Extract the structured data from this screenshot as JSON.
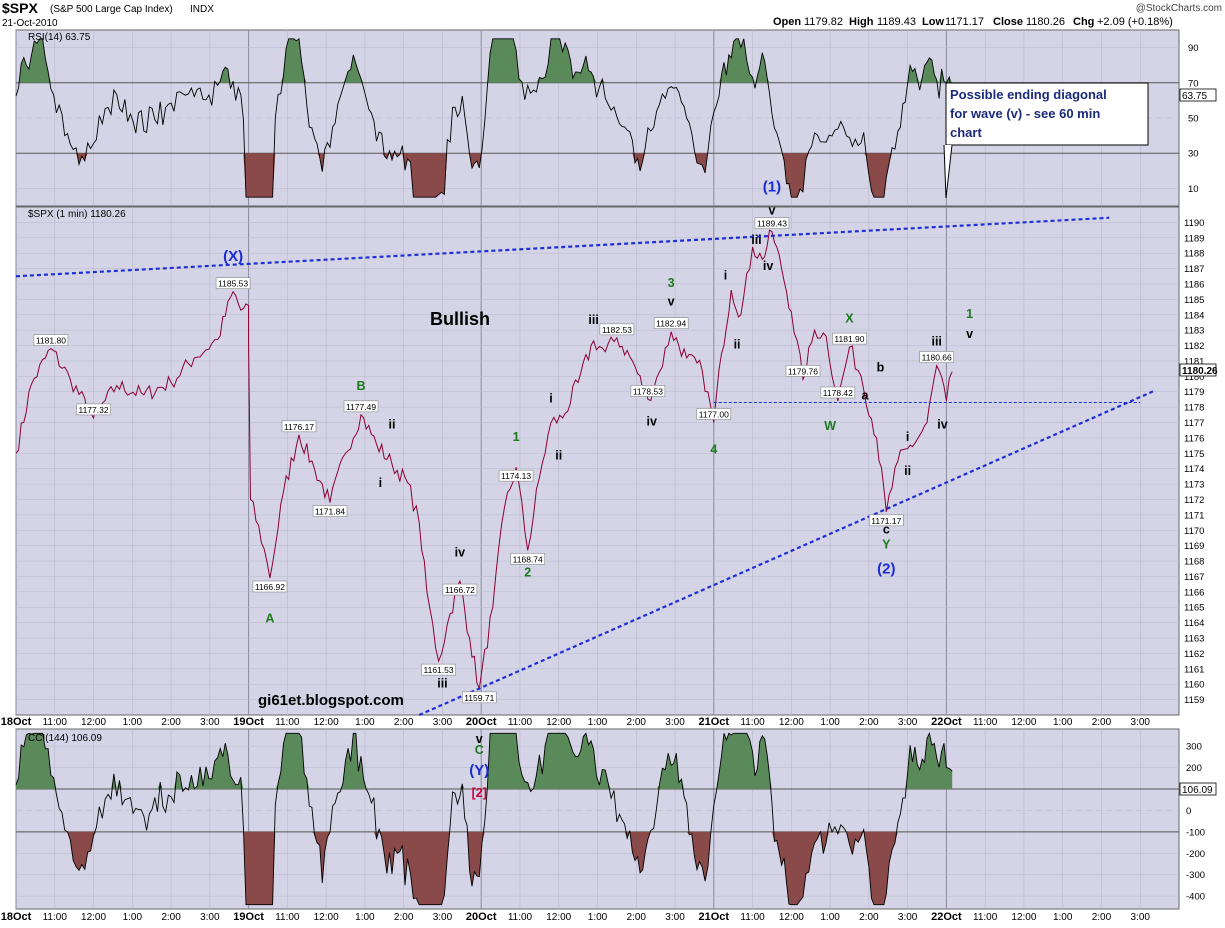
{
  "header": {
    "symbol": "$SPX",
    "name": "(S&P 500 Large Cap Index)",
    "exchange": "INDX",
    "date": "21-Oct-2010",
    "watermark": "@StockCharts.com",
    "quote": {
      "open_label": "Open",
      "open": "1179.82",
      "high_label": "High",
      "high": "1189.43",
      "low_label": "Low",
      "low": "1171.17",
      "close_label": "Close",
      "close": "1180.26",
      "chg_label": "Chg",
      "chg": "+2.09 (+0.18%)"
    }
  },
  "colors": {
    "panel_bg": "#d4d4e6",
    "grid": "#b9b9cc",
    "price_line": "#8b0033",
    "indicator_line": "#000000",
    "overbought_fill": "#5a8a5a",
    "oversold_fill": "#8a4a4a",
    "trend_line": "#1f2fd8",
    "wave_black": "#000000",
    "wave_green": "#1c7a1c",
    "wave_blue": "#1a2ad4",
    "wave_red": "#cc0033"
  },
  "rsi": {
    "label": "RSI(14) 63.75",
    "current": "63.75",
    "ticks": [
      "90",
      "70",
      "50",
      "30",
      "10"
    ]
  },
  "cci": {
    "label": "CCI(144) 106.09",
    "current": "106.09",
    "ticks": [
      "300",
      "200",
      "100",
      "0",
      "-100",
      "-200",
      "-300",
      "-400"
    ]
  },
  "price": {
    "label": "$SPX (1 min) 1180.26",
    "current": "1180.26",
    "watermark_text": "gi61et.blogspot.com",
    "annotation_bullish": "Bullish",
    "callout": {
      "line1": "Possible ending diagonal",
      "line2": "for wave (v) - see 60 min",
      "line3": "chart"
    }
  },
  "x_axis": {
    "labels": [
      "18Oct",
      "11:00",
      "12:00",
      "1:00",
      "2:00",
      "3:00",
      "19Oct",
      "11:00",
      "12:00",
      "1:00",
      "2:00",
      "3:00",
      "20Oct",
      "11:00",
      "12:00",
      "1:00",
      "2:00",
      "3:00",
      "21Oct",
      "11:00",
      "12:00",
      "1:00",
      "2:00",
      "3:00",
      "22Oct",
      "11:00",
      "12:00",
      "1:00",
      "2:00",
      "3:00"
    ]
  },
  "chart_data": {
    "type": "line",
    "title": "$SPX (S&P 500 Large Cap Index) INDX",
    "y_range": [
      1158,
      1191
    ],
    "y_ticks": [
      1159,
      1160,
      1161,
      1162,
      1163,
      1164,
      1165,
      1166,
      1167,
      1168,
      1169,
      1170,
      1171,
      1172,
      1173,
      1174,
      1175,
      1176,
      1177,
      1178,
      1179,
      1180,
      1181,
      1182,
      1183,
      1184,
      1185,
      1186,
      1187,
      1188,
      1189,
      1190
    ],
    "x_sessions": [
      "18Oct",
      "19Oct",
      "20Oct",
      "21Oct"
    ],
    "series": [
      {
        "points": [
          [
            0,
            1175.0
          ],
          [
            0.4,
            1179.5
          ],
          [
            0.9,
            1181.8
          ],
          [
            1.4,
            1179.8
          ],
          [
            2.0,
            1177.3
          ],
          [
            2.6,
            1179.4
          ],
          [
            3.3,
            1178.8
          ],
          [
            4.0,
            1179.6
          ],
          [
            4.6,
            1181.2
          ],
          [
            5.2,
            1182.4
          ],
          [
            5.6,
            1185.5
          ],
          [
            5.8,
            1184.3
          ],
          [
            6.0,
            1184.6
          ],
          [
            6.0,
            1182.0
          ],
          [
            6.05,
            1172.0
          ],
          [
            6.4,
            1168.8
          ],
          [
            6.55,
            1166.9
          ],
          [
            6.9,
            1172.5
          ],
          [
            7.3,
            1176.2
          ],
          [
            7.7,
            1174.0
          ],
          [
            8.1,
            1171.8
          ],
          [
            8.5,
            1175.0
          ],
          [
            8.9,
            1177.5
          ],
          [
            9.3,
            1175.6
          ],
          [
            9.7,
            1174.3
          ],
          [
            10.1,
            1173.1
          ],
          [
            10.4,
            1170.5
          ],
          [
            10.6,
            1166.0
          ],
          [
            10.9,
            1161.5
          ],
          [
            11.2,
            1164.6
          ],
          [
            11.45,
            1166.7
          ],
          [
            11.7,
            1163.0
          ],
          [
            11.95,
            1159.7
          ],
          [
            12.3,
            1165.0
          ],
          [
            12.6,
            1171.5
          ],
          [
            12.9,
            1174.1
          ],
          [
            13.2,
            1168.7
          ],
          [
            13.5,
            1173.4
          ],
          [
            13.8,
            1177.0
          ],
          [
            14.1,
            1177.3
          ],
          [
            14.5,
            1179.6
          ],
          [
            14.9,
            1182.3
          ],
          [
            15.2,
            1181.6
          ],
          [
            15.5,
            1182.5
          ],
          [
            15.9,
            1181.0
          ],
          [
            16.3,
            1178.5
          ],
          [
            16.6,
            1180.3
          ],
          [
            16.9,
            1182.9
          ],
          [
            17.3,
            1181.2
          ],
          [
            17.7,
            1180.4
          ],
          [
            18.0,
            1177.0
          ],
          [
            18.2,
            1181.5
          ],
          [
            18.45,
            1185.6
          ],
          [
            18.7,
            1184.0
          ],
          [
            19.0,
            1188.4
          ],
          [
            19.25,
            1187.6
          ],
          [
            19.5,
            1189.4
          ],
          [
            19.75,
            1187.0
          ],
          [
            20.0,
            1184.2
          ],
          [
            20.3,
            1179.8
          ],
          [
            20.6,
            1183.0
          ],
          [
            20.9,
            1182.6
          ],
          [
            21.2,
            1178.4
          ],
          [
            21.5,
            1181.9
          ],
          [
            21.8,
            1180.0
          ],
          [
            22.2,
            1176.0
          ],
          [
            22.45,
            1171.2
          ],
          [
            22.75,
            1174.5
          ],
          [
            23.0,
            1175.3
          ],
          [
            23.25,
            1175.9
          ],
          [
            23.5,
            1177.0
          ],
          [
            23.75,
            1180.7
          ],
          [
            24.0,
            1178.4
          ],
          [
            24.15,
            1180.3
          ]
        ]
      }
    ],
    "price_labels": [
      {
        "text": "1181.80",
        "x": 0.9,
        "y": 1181.8
      },
      {
        "text": "1177.32",
        "x": 2.0,
        "y": 1177.3
      },
      {
        "text": "1185.53",
        "x": 5.6,
        "y": 1185.5
      },
      {
        "text": "1166.92",
        "x": 6.55,
        "y": 1166.9
      },
      {
        "text": "1176.17",
        "x": 7.3,
        "y": 1176.2
      },
      {
        "text": "1171.84",
        "x": 8.1,
        "y": 1171.8
      },
      {
        "text": "1177.49",
        "x": 8.9,
        "y": 1177.5
      },
      {
        "text": "1161.53",
        "x": 10.9,
        "y": 1161.5
      },
      {
        "text": "1166.72",
        "x": 11.45,
        "y": 1166.7
      },
      {
        "text": "1159.71",
        "x": 11.95,
        "y": 1159.7
      },
      {
        "text": "1174.13",
        "x": 12.9,
        "y": 1174.1
      },
      {
        "text": "1168.74",
        "x": 13.2,
        "y": 1168.7
      },
      {
        "text": "1182.53",
        "x": 15.5,
        "y": 1182.5
      },
      {
        "text": "1182.94",
        "x": 16.9,
        "y": 1182.9
      },
      {
        "text": "1178.53",
        "x": 16.3,
        "y": 1178.5
      },
      {
        "text": "1177.00",
        "x": 18.0,
        "y": 1177.0
      },
      {
        "text": "1189.43",
        "x": 19.5,
        "y": 1189.4
      },
      {
        "text": "1179.76",
        "x": 20.3,
        "y": 1179.8
      },
      {
        "text": "1181.90",
        "x": 21.5,
        "y": 1181.9
      },
      {
        "text": "1178.42",
        "x": 21.2,
        "y": 1178.4
      },
      {
        "text": "1171.17",
        "x": 22.45,
        "y": 1171.2
      },
      {
        "text": "1180.66",
        "x": 23.75,
        "y": 1180.7
      }
    ],
    "wave_labels": [
      {
        "text": "(X)",
        "color": "blue",
        "x": 5.6,
        "y": 1187.5
      },
      {
        "text": "Bullish",
        "color": "black",
        "x": 11.5,
        "y": 1183.6
      },
      {
        "text": "A",
        "color": "green",
        "x": 6.55,
        "y": 1164.0
      },
      {
        "text": "B",
        "color": "green",
        "x": 8.9,
        "y": 1179.1
      },
      {
        "text": "i",
        "color": "black",
        "x": 9.4,
        "y": 1172.8
      },
      {
        "text": "ii",
        "color": "black",
        "x": 9.7,
        "y": 1176.6
      },
      {
        "text": "iii",
        "color": "black",
        "x": 11.0,
        "y": 1159.8
      },
      {
        "text": "iv",
        "color": "black",
        "x": 11.45,
        "y": 1168.3
      },
      {
        "text": "1",
        "color": "green",
        "x": 12.9,
        "y": 1175.8
      },
      {
        "text": "2",
        "color": "green",
        "x": 13.2,
        "y": 1167.0
      },
      {
        "text": "i",
        "color": "black",
        "x": 13.8,
        "y": 1178.3
      },
      {
        "text": "ii",
        "color": "black",
        "x": 14.0,
        "y": 1174.6
      },
      {
        "text": "iii",
        "color": "black",
        "x": 14.9,
        "y": 1183.4
      },
      {
        "text": "iv",
        "color": "black",
        "x": 16.4,
        "y": 1176.8
      },
      {
        "text": "3",
        "color": "green",
        "x": 16.9,
        "y": 1185.8
      },
      {
        "text": "v",
        "color": "black",
        "x": 16.9,
        "y": 1184.6
      },
      {
        "text": "4",
        "color": "green",
        "x": 18.0,
        "y": 1175.0
      },
      {
        "text": "i",
        "color": "black",
        "x": 18.3,
        "y": 1186.3
      },
      {
        "text": "ii",
        "color": "black",
        "x": 18.6,
        "y": 1181.8
      },
      {
        "text": "(1)",
        "color": "blue",
        "x": 19.5,
        "y": 1192.0
      },
      {
        "text": "v",
        "color": "black",
        "x": 19.5,
        "y": 1190.5
      },
      {
        "text": "iii",
        "color": "black",
        "x": 19.1,
        "y": 1188.6
      },
      {
        "text": "iv",
        "color": "black",
        "x": 19.4,
        "y": 1186.9
      },
      {
        "text": "X",
        "color": "green",
        "x": 21.5,
        "y": 1183.5
      },
      {
        "text": "a",
        "color": "black",
        "x": 21.9,
        "y": 1178.5
      },
      {
        "text": "b",
        "color": "black",
        "x": 22.3,
        "y": 1180.3
      },
      {
        "text": "W",
        "color": "green",
        "x": 21.0,
        "y": 1176.5
      },
      {
        "text": "c",
        "color": "black",
        "x": 22.45,
        "y": 1169.8
      },
      {
        "text": "Y",
        "color": "green",
        "x": 22.45,
        "y": 1168.8
      },
      {
        "text": "(2)",
        "color": "blue",
        "x": 22.45,
        "y": 1167.2
      },
      {
        "text": "i",
        "color": "black",
        "x": 23.0,
        "y": 1175.8
      },
      {
        "text": "ii",
        "color": "black",
        "x": 23.0,
        "y": 1173.6
      },
      {
        "text": "iii",
        "color": "black",
        "x": 23.75,
        "y": 1182.0
      },
      {
        "text": "iv",
        "color": "black",
        "x": 23.9,
        "y": 1176.6
      },
      {
        "text": "1",
        "color": "green",
        "x": 24.6,
        "y": 1183.8
      },
      {
        "text": "v",
        "color": "black",
        "x": 24.6,
        "y": 1182.5
      },
      {
        "text": "v",
        "color": "black",
        "x": 11.95,
        "y": 1158.0,
        "panel": "gap"
      },
      {
        "text": "C",
        "color": "green",
        "x": 11.95,
        "y": 1157.0,
        "panel": "gap"
      },
      {
        "text": "(Y)",
        "color": "blue",
        "x": 11.95,
        "y": 1155.7,
        "panel": "gap"
      },
      {
        "text": "[2]",
        "color": "red",
        "x": 11.95,
        "y": 1154.2,
        "panel": "gap"
      }
    ]
  }
}
